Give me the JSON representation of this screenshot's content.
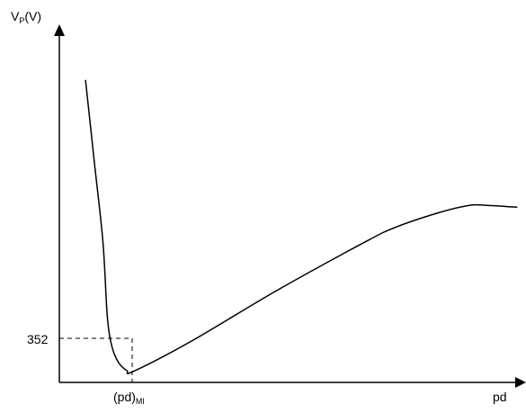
{
  "chart_data": {
    "type": "line",
    "ylabel_main": "V",
    "ylabel_sub": "P",
    "ylabel_unit": "(V)",
    "xlabel": "pd",
    "xtick_main": "(pd)",
    "xtick_sub": "MI",
    "ytick_label": "352",
    "min_point": {
      "x_label": "(pd)MI",
      "y": 352
    },
    "series": [
      {
        "points": [
          [
            0.06,
            0.82
          ],
          [
            0.08,
            0.6
          ],
          [
            0.1,
            0.38
          ],
          [
            0.11,
            0.18
          ],
          [
            0.12,
            0.1
          ],
          [
            0.135,
            0.055
          ],
          [
            0.155,
            0.032
          ],
          [
            0.17,
            0.03
          ],
          [
            0.3,
            0.11
          ],
          [
            0.5,
            0.25
          ],
          [
            0.7,
            0.38
          ],
          [
            0.77,
            0.42
          ],
          [
            0.87,
            0.46
          ],
          [
            0.94,
            0.48
          ],
          [
            0.98,
            0.48
          ],
          [
            1.05,
            0.475
          ]
        ]
      }
    ],
    "grid": false,
    "legend": false
  }
}
